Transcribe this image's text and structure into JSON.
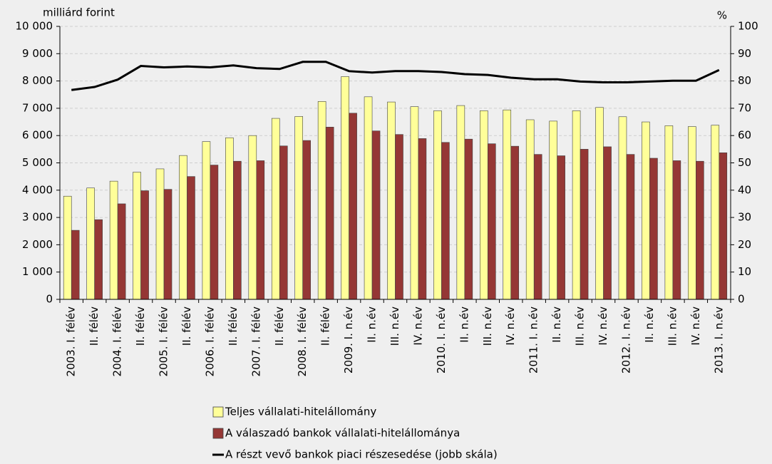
{
  "chart_data": {
    "type": "bar",
    "y_unit_label": "milliárd forint",
    "y2_unit_label": "%",
    "categories": [
      "2003. I. félév",
      "II. félév",
      "2004. I. félév",
      "II. félév",
      "2005. I. félév",
      "II. félév",
      "2006. I. félév",
      "II. félév",
      "2007. I. félév",
      "II. félév",
      "2008. I. félév",
      "II. félév",
      "2009. I. n.év",
      "II. n.év",
      "III. n.év",
      "IV. n.év",
      "2010. I. n.év",
      "II. n.év",
      "III. n.év",
      "IV. n.év",
      "2011. I. n.év",
      "II. n.év",
      "III. n.év",
      "IV. n.év",
      "2012. I. n.év",
      "II. n.év",
      "III. n.év",
      "IV. n.év",
      "2013. I. n.év"
    ],
    "series": [
      {
        "name": "Teljes vállalati-hitelállomány",
        "color": "#ffff99",
        "type": "bar",
        "values": [
          3780,
          4080,
          4330,
          4660,
          4780,
          5270,
          5780,
          5920,
          6000,
          6630,
          6700,
          7250,
          8160,
          7420,
          7230,
          7060,
          6910,
          7100,
          6910,
          6940,
          6580,
          6530,
          6910,
          7030,
          6690,
          6500,
          6360,
          6330,
          6380
        ]
      },
      {
        "name": "A válaszadó bankok vállalati-hitelállománya",
        "color": "#953735",
        "type": "bar",
        "values": [
          2530,
          2920,
          3500,
          3980,
          4030,
          4500,
          4920,
          5060,
          5080,
          5620,
          5820,
          6310,
          6820,
          6170,
          6040,
          5890,
          5750,
          5870,
          5700,
          5610,
          5310,
          5260,
          5500,
          5590,
          5310,
          5170,
          5080,
          5060,
          5370
        ]
      },
      {
        "name": "A részt vevő bankok piaci részesedése (jobb skála)",
        "color": "#000000",
        "type": "line",
        "axis": "y2",
        "values": [
          76.7,
          77.8,
          80.5,
          85.5,
          85.0,
          85.3,
          85.0,
          85.7,
          84.7,
          84.4,
          87.0,
          87.0,
          83.6,
          83.1,
          83.6,
          83.6,
          83.3,
          82.5,
          82.2,
          81.2,
          80.6,
          80.6,
          79.8,
          79.5,
          79.5,
          79.8,
          80.1,
          80.1,
          84.0
        ]
      }
    ],
    "ylim": [
      0,
      10000
    ],
    "yticks": [
      0,
      {
        "value": 1000,
        "label": "1 000"
      },
      {
        "value": 2000,
        "label": "2 000"
      },
      {
        "value": 3000,
        "label": "3 000"
      },
      {
        "value": 4000,
        "label": "4 000"
      },
      {
        "value": 5000,
        "label": "5 000"
      },
      {
        "value": 6000,
        "label": "6 000"
      },
      {
        "value": 7000,
        "label": "7 000"
      },
      {
        "value": 8000,
        "label": "8 000"
      },
      {
        "value": 9000,
        "label": "9 000"
      },
      {
        "value": 10000,
        "label": "10 000"
      }
    ],
    "y2lim": [
      0,
      100
    ],
    "y2ticks": [
      0,
      10,
      20,
      30,
      40,
      50,
      60,
      70,
      80,
      90,
      100
    ],
    "grid": true
  }
}
